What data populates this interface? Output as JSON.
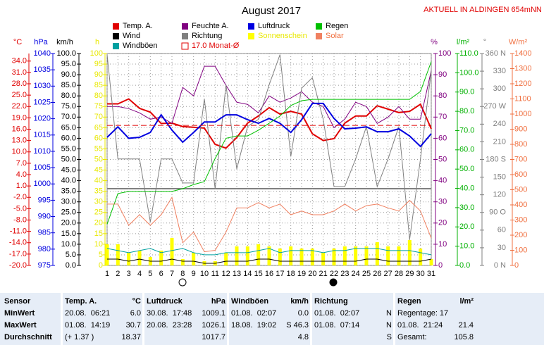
{
  "chart_data": {
    "type": "line",
    "title": "August 2017",
    "subtitle": "AKTUELL IN ALDINGEN 654mNN",
    "x": [
      1,
      2,
      3,
      4,
      5,
      6,
      7,
      8,
      9,
      10,
      11,
      12,
      13,
      14,
      15,
      16,
      17,
      18,
      19,
      20,
      21,
      22,
      23,
      24,
      25,
      26,
      27,
      28,
      29,
      30,
      31
    ],
    "xlim": [
      1,
      31
    ],
    "grid": true,
    "axes": {
      "temp": {
        "label": "°C",
        "color": "#e00000",
        "ylim": [
          -20,
          36
        ],
        "yticks": [
          {
            "value": 34,
            "label": "34.0"
          },
          {
            "value": 31,
            "label": "31.0"
          },
          {
            "value": 28,
            "label": "28.0"
          },
          {
            "value": 25,
            "label": "25.0"
          },
          {
            "value": 22,
            "label": "22.0"
          },
          {
            "value": 19,
            "label": "19.0"
          },
          {
            "value": 16,
            "label": "16.0"
          },
          {
            "value": 13,
            "label": "13.0"
          },
          {
            "value": 10,
            "label": "10.0"
          },
          {
            "value": 7,
            "label": "7.0"
          },
          {
            "value": 4,
            "label": "4.0"
          },
          {
            "value": 1,
            "label": "1.0"
          },
          {
            "value": -2,
            "label": "-2.0"
          },
          {
            "value": -5,
            "label": "-5.0"
          },
          {
            "value": -8,
            "label": "-8.0"
          },
          {
            "value": -11,
            "label": "-11.0"
          },
          {
            "value": -14,
            "label": "-14.0"
          },
          {
            "value": -17,
            "label": "-17.0"
          },
          {
            "value": -20,
            "label": "-20.0"
          }
        ]
      },
      "hpa": {
        "label": "hPa",
        "color": "#0000e0",
        "ylim": [
          975,
          1040
        ],
        "yticks": [
          1040,
          1035,
          1030,
          1025,
          1020,
          1015,
          1010,
          1005,
          1000,
          995,
          990,
          985,
          980,
          975
        ]
      },
      "kmh": {
        "label": "km/h",
        "color": "#000000",
        "ylim": [
          0,
          100
        ],
        "yticks": [
          {
            "value": 100,
            "label": "100.0"
          },
          {
            "value": 95,
            "label": "95.0"
          },
          {
            "value": 90,
            "label": "90.0"
          },
          {
            "value": 85,
            "label": "85.0"
          },
          {
            "value": 80,
            "label": "80.0"
          },
          {
            "value": 75,
            "label": "75.0"
          },
          {
            "value": 70,
            "label": "70.0"
          },
          {
            "value": 65,
            "label": "65.0"
          },
          {
            "value": 60,
            "label": "60.0"
          },
          {
            "value": 55,
            "label": "55.0"
          },
          {
            "value": 50,
            "label": "50.0"
          },
          {
            "value": 45,
            "label": "45.0"
          },
          {
            "value": 40,
            "label": "40.0"
          },
          {
            "value": 35,
            "label": "35.0"
          },
          {
            "value": 30,
            "label": "30.0"
          },
          {
            "value": 25,
            "label": "25.0"
          },
          {
            "value": 20,
            "label": "20.0"
          },
          {
            "value": 15,
            "label": "15.0"
          },
          {
            "value": 10,
            "label": "10.0"
          },
          {
            "value": 5,
            "label": "5.0"
          },
          {
            "value": 0,
            "label": "0.0"
          }
        ]
      },
      "h": {
        "label": "h",
        "color": "#e8e800",
        "ylim": [
          0,
          100
        ],
        "yticks": [
          100,
          95,
          90,
          85,
          80,
          75,
          70,
          65,
          60,
          55,
          50,
          45,
          40,
          35,
          30,
          25,
          20,
          15,
          10,
          5,
          0
        ]
      },
      "pct": {
        "label": "%",
        "color": "#800080",
        "ylim": [
          0,
          100
        ],
        "yticks": [
          100,
          90,
          80,
          70,
          60,
          50,
          40,
          30,
          20,
          10,
          0
        ]
      },
      "rain": {
        "label": "l/m²",
        "color": "#00b000",
        "ylim": [
          0,
          110
        ],
        "yticks": [
          {
            "value": 110,
            "label": "110.0"
          },
          {
            "value": 100,
            "label": "100.0"
          },
          {
            "value": 90,
            "label": "90.0"
          },
          {
            "value": 80,
            "label": "80.0"
          },
          {
            "value": 70,
            "label": "70.0"
          },
          {
            "value": 60,
            "label": "60.0"
          },
          {
            "value": 50,
            "label": "50.0"
          },
          {
            "value": 40,
            "label": "40.0"
          },
          {
            "value": 30,
            "label": "30.0"
          },
          {
            "value": 20,
            "label": "20.0"
          },
          {
            "value": 10,
            "label": "10.0"
          },
          {
            "value": 0,
            "label": "0.0"
          }
        ]
      },
      "deg": {
        "label": "°",
        "color": "#808080",
        "ylim": [
          0,
          360
        ],
        "yticks": [
          {
            "value": 360,
            "label": "360 N"
          },
          330,
          300,
          {
            "value": 270,
            "label": "270 W"
          },
          240,
          210,
          {
            "value": 180,
            "label": "180 S"
          },
          150,
          120,
          {
            "value": 90,
            "label": "90 O"
          },
          60,
          30,
          {
            "value": 0,
            "label": "0 N"
          }
        ]
      },
      "wm2": {
        "label": "W/m²",
        "color": "#f07040",
        "ylim": [
          0,
          1400
        ],
        "yticks": [
          1400,
          1300,
          1200,
          1100,
          1000,
          900,
          800,
          700,
          600,
          500,
          400,
          300,
          200,
          100,
          0
        ]
      }
    },
    "series": [
      {
        "name": "Temp. A.",
        "color": "#e00000",
        "axis": "temp",
        "values": [
          22.7,
          22.7,
          24.0,
          21.5,
          20.5,
          17.5,
          17.6,
          16.7,
          16.5,
          16.3,
          12.0,
          11.0,
          13.8,
          17.6,
          19.5,
          21.7,
          20.0,
          20.7,
          20.0,
          14.8,
          13.0,
          13.5,
          17.6,
          19.5,
          19.5,
          22.2,
          21.3,
          20.4,
          20.7,
          22.6,
          16.1
        ]
      },
      {
        "name": "Wind",
        "color": "#000000",
        "axis": "kmh",
        "values": [
          3,
          3,
          2,
          3,
          2,
          2,
          3,
          2,
          2,
          1,
          1,
          2,
          2,
          2,
          3,
          3,
          2,
          2,
          2,
          2,
          2,
          2,
          2,
          2,
          3,
          3,
          2,
          2,
          2,
          2,
          3
        ]
      },
      {
        "name": "Windböen",
        "color": "#00a0a0",
        "axis": "kmh",
        "values": [
          8,
          7,
          6,
          7,
          8,
          6,
          7,
          8,
          6,
          5,
          5,
          6,
          6,
          6,
          7,
          8,
          6,
          7,
          7,
          7,
          6,
          7,
          7,
          8,
          8,
          8,
          7,
          7,
          7,
          6,
          5
        ]
      },
      {
        "name": "Feuchte A.",
        "color": "#800080",
        "axis": "pct",
        "values": [
          75,
          75,
          74,
          72,
          69,
          70,
          67,
          84,
          80,
          94,
          94,
          85,
          77,
          76,
          72,
          80,
          77,
          79,
          82,
          77,
          75,
          65,
          69,
          77,
          75,
          67,
          70,
          75,
          69,
          69,
          92
        ]
      },
      {
        "name": "Richtung",
        "color": "#808080",
        "axis": "deg",
        "values": [
          358,
          181,
          181,
          181,
          74,
          181,
          181,
          140,
          140,
          283,
          130,
          307,
          164,
          236,
          248,
          307,
          358,
          185,
          301,
          319,
          248,
          134,
          134,
          181,
          236,
          134,
          181,
          236,
          44,
          181,
          331
        ]
      },
      {
        "name": "Luftdruck",
        "color": "#0000e0",
        "axis": "hpa",
        "values": [
          1014.3,
          1017.5,
          1014.0,
          1014.3,
          1015.8,
          1021.2,
          1016.5,
          1012.8,
          1015.8,
          1019.0,
          1019.0,
          1021.2,
          1021.2,
          1019.7,
          1018.6,
          1020.1,
          1018.6,
          1015.8,
          1019.7,
          1024.7,
          1024.7,
          1020.1,
          1016.9,
          1017.1,
          1017.5,
          1016.0,
          1016.0,
          1016.9,
          1014.7,
          1011.5,
          1015.4
        ]
      },
      {
        "name": "Sonnenschein",
        "color": "#ffff00",
        "label_color": "#e8e800",
        "axis": "h",
        "type": "bar",
        "values": [
          10,
          10,
          6,
          7,
          4,
          7,
          13,
          3,
          6,
          2,
          2,
          6,
          9,
          9,
          10,
          9,
          8,
          9,
          8,
          8,
          6,
          8,
          9,
          9,
          9,
          11,
          9,
          9,
          12,
          8,
          3
        ]
      },
      {
        "name": "Regen",
        "color": "#00c000",
        "axis": "rain",
        "values": [
          21.4,
          37.3,
          38.4,
          38.4,
          38.4,
          38.4,
          38.4,
          39.8,
          42.0,
          43.5,
          55.5,
          66.0,
          67.2,
          67.2,
          70.2,
          73.8,
          77.5,
          83.0,
          85.5,
          86.2,
          86.2,
          86.2,
          86.2,
          86.2,
          86.2,
          86.2,
          86.2,
          86.2,
          86.2,
          90.3,
          105.8
        ]
      },
      {
        "name": "Solar",
        "color": "#f08060",
        "label_color": "#f07040",
        "axis": "wm2",
        "values": [
          405,
          405,
          265,
          335,
          265,
          335,
          450,
          150,
          220,
          90,
          100,
          220,
          380,
          380,
          415,
          380,
          405,
          335,
          360,
          335,
          335,
          360,
          405,
          360,
          395,
          405,
          380,
          360,
          430,
          360,
          180
        ]
      }
    ],
    "mean_line": {
      "value": 17,
      "label": "17.0 Monat-Ø",
      "color": "#e00000",
      "axis": "temp"
    }
  },
  "table": {
    "header": [
      {
        "left": "Sensor"
      },
      {
        "left": "Temp. A.",
        "right": "°C"
      },
      {
        "left": "Luftdruck",
        "right": "hPa"
      },
      {
        "left": "Windböen",
        "right": "km/h"
      },
      {
        "left": "Richtung"
      },
      {
        "left": "Regen",
        "right": "l/m²"
      }
    ],
    "rows": [
      [
        {
          "left": "MinWert"
        },
        {
          "left": "20.08.  06:21",
          "right": "6.0"
        },
        {
          "left": "30.08.  17:48",
          "right": "1009.1"
        },
        {
          "left": "01.08.  02:07",
          "right": "0.0"
        },
        {
          "left": "01.08.  02:07",
          "right": "N"
        },
        {
          "left": "Regentage: 17"
        }
      ],
      [
        {
          "left": "MaxWert"
        },
        {
          "left": "01.08.  14:19",
          "right": "30.7"
        },
        {
          "left": "20.08.  23:28",
          "right": "1026.1"
        },
        {
          "left": "18.08.  19:02",
          "right": "S 46.3"
        },
        {
          "left": "01.08.  07:14",
          "right": "N"
        },
        {
          "left": "01.08.  21:24",
          "right": "21.4"
        }
      ],
      [
        {
          "left": "Durchschnitt"
        },
        {
          "left": "(+ 1.37 )",
          "right": "18.37"
        },
        {
          "right": "1017.7"
        },
        {
          "right": "4.8"
        },
        {
          "right": "S"
        },
        {
          "left": "Gesamt:",
          "right": "105.8"
        }
      ]
    ]
  }
}
